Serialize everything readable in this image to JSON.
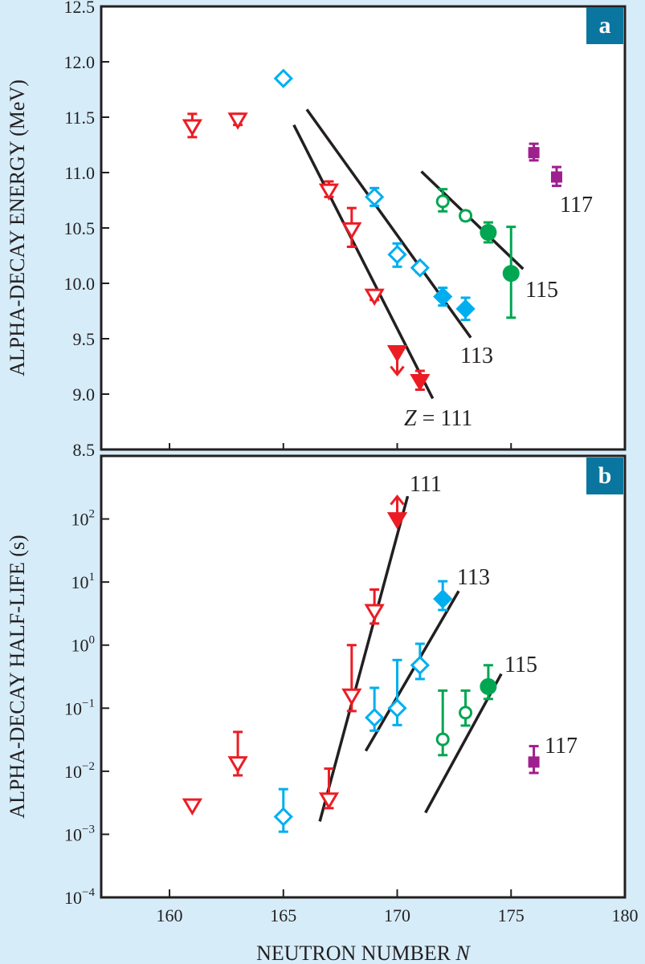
{
  "chart_data": [
    {
      "type": "scatter",
      "panel_label": "a",
      "ylabel": "ALPHA-DECAY ENERGY (MeV)",
      "xlim": [
        157,
        180
      ],
      "ylim": [
        8.5,
        12.5
      ],
      "yticks": [
        "8.5",
        "9.0",
        "9.5",
        "10.0",
        "10.5",
        "11.0",
        "11.5",
        "12.0",
        "12.5"
      ],
      "ytick_values": [
        8.5,
        9.0,
        9.5,
        10.0,
        10.5,
        11.0,
        11.5,
        12.0,
        12.5
      ],
      "series": [
        {
          "label": "Z = 111",
          "color": "#ec1c24",
          "marker": "triangle-down",
          "points": [
            {
              "N": 161,
              "v": 11.42,
              "lo": 11.32,
              "hi": 11.53,
              "filled": false
            },
            {
              "N": 163,
              "v": 11.48,
              "lo": 11.43,
              "hi": 11.53,
              "filled": false
            },
            {
              "N": 167,
              "v": 10.84,
              "lo": 10.78,
              "hi": 10.92,
              "filled": false
            },
            {
              "N": 168,
              "v": 10.49,
              "lo": 10.33,
              "hi": 10.68,
              "filled": false
            },
            {
              "N": 169,
              "v": 9.89,
              "lo": 9.85,
              "hi": 9.92,
              "filled": false
            },
            {
              "N": 170,
              "v": 9.38,
              "filled": true,
              "limit": "upper"
            },
            {
              "N": 171,
              "v": 9.12,
              "lo": 9.04,
              "hi": 9.21,
              "filled": true
            }
          ],
          "fit": [
            [
              165.46,
              11.43
            ],
            [
              171.56,
              8.96
            ]
          ]
        },
        {
          "label": "113",
          "color": "#00aeef",
          "marker": "diamond",
          "points": [
            {
              "N": 165,
              "v": 11.85,
              "filled": false
            },
            {
              "N": 169,
              "v": 10.78,
              "lo": 10.7,
              "hi": 10.86,
              "filled": false
            },
            {
              "N": 170,
              "v": 10.26,
              "lo": 10.15,
              "hi": 10.36,
              "filled": false
            },
            {
              "N": 171,
              "v": 10.14,
              "lo": 10.1,
              "hi": 10.18,
              "filled": false
            },
            {
              "N": 172,
              "v": 9.88,
              "lo": 9.8,
              "hi": 9.96,
              "filled": true
            },
            {
              "N": 173,
              "v": 9.77,
              "lo": 9.67,
              "hi": 9.87,
              "filled": true
            }
          ],
          "fit": [
            [
              166.03,
              11.57
            ],
            [
              173.23,
              9.51
            ]
          ]
        },
        {
          "label": "115",
          "color": "#00a651",
          "marker": "circle",
          "points": [
            {
              "N": 172,
              "v": 10.74,
              "lo": 10.65,
              "hi": 10.85,
              "filled": false
            },
            {
              "N": 173,
              "v": 10.61,
              "lo": 10.57,
              "hi": 10.65,
              "filled": false
            },
            {
              "N": 174,
              "v": 10.46,
              "lo": 10.37,
              "hi": 10.55,
              "filled": true
            },
            {
              "N": 175,
              "v": 10.09,
              "lo": 9.69,
              "hi": 10.51,
              "filled": true
            }
          ],
          "fit": [
            [
              171.06,
              11.01
            ],
            [
              175.53,
              10.13
            ]
          ]
        },
        {
          "label": "117",
          "color": "#9e1f8e",
          "marker": "square",
          "points": [
            {
              "N": 176,
              "v": 11.18,
              "lo": 11.11,
              "hi": 11.26,
              "filled": true
            },
            {
              "N": 177,
              "v": 10.96,
              "lo": 10.88,
              "hi": 11.05,
              "filled": true
            }
          ]
        }
      ]
    },
    {
      "type": "scatter",
      "panel_label": "b",
      "ylabel": "ALPHA-DECAY HALF-LIFE (s)",
      "xlabel": "NEUTRON NUMBER",
      "xlabel_var": "N",
      "xlim": [
        157,
        180
      ],
      "xticks": [
        "160",
        "165",
        "170",
        "175",
        "180"
      ],
      "xtick_values": [
        160,
        165,
        170,
        175,
        180
      ],
      "yscale": "log",
      "ylim": [
        0.0001,
        1000
      ],
      "ytick_exponents": [
        "-4",
        "-3",
        "-2",
        "-1",
        "0",
        "1",
        "2"
      ],
      "ytick_base": "10",
      "series": [
        {
          "label": "111",
          "color": "#ec1c24",
          "marker": "triangle-down",
          "points": [
            {
              "N": 161,
              "v": 0.0029,
              "filled": false
            },
            {
              "N": 163,
              "v": 0.0135,
              "lo": 0.0086,
              "hi": 0.042,
              "filled": false
            },
            {
              "N": 167,
              "v": 0.0036,
              "lo": 0.0026,
              "hi": 0.011,
              "filled": false
            },
            {
              "N": 168,
              "v": 0.16,
              "lo": 0.09,
              "hi": 1.0,
              "filled": false
            },
            {
              "N": 169,
              "v": 3.5,
              "lo": 2.2,
              "hi": 7.6,
              "filled": false
            },
            {
              "N": 170,
              "v": 100,
              "filled": true,
              "limit": "lower"
            }
          ],
          "fit": [
            [
              166.6,
              0.0016
            ],
            [
              170.46,
              230
            ]
          ]
        },
        {
          "label": "113",
          "color": "#00aeef",
          "marker": "diamond",
          "points": [
            {
              "N": 165,
              "v": 0.0019,
              "lo": 0.0011,
              "hi": 0.0052,
              "filled": false
            },
            {
              "N": 169,
              "v": 0.071,
              "lo": 0.044,
              "hi": 0.21,
              "filled": false
            },
            {
              "N": 170,
              "v": 0.1,
              "lo": 0.054,
              "hi": 0.58,
              "filled": false
            },
            {
              "N": 171,
              "v": 0.48,
              "lo": 0.29,
              "hi": 1.05,
              "filled": false
            },
            {
              "N": 172,
              "v": 5.4,
              "lo": 3.6,
              "hi": 10.3,
              "filled": true
            }
          ],
          "fit": [
            [
              168.62,
              0.021
            ],
            [
              172.7,
              7.2
            ]
          ]
        },
        {
          "label": "115",
          "color": "#00a651",
          "marker": "circle",
          "points": [
            {
              "N": 172,
              "v": 0.032,
              "lo": 0.018,
              "hi": 0.19,
              "filled": false
            },
            {
              "N": 173,
              "v": 0.085,
              "lo": 0.053,
              "hi": 0.19,
              "filled": false
            },
            {
              "N": 174,
              "v": 0.22,
              "lo": 0.14,
              "hi": 0.48,
              "filled": true
            }
          ],
          "fit": [
            [
              171.24,
              0.0022
            ],
            [
              174.57,
              0.35
            ]
          ]
        },
        {
          "label": "117",
          "color": "#9e1f8e",
          "marker": "square",
          "points": [
            {
              "N": 176,
              "v": 0.014,
              "lo": 0.0094,
              "hi": 0.025,
              "filled": true
            }
          ]
        }
      ]
    }
  ],
  "colors": {
    "background": "#d6ecf9",
    "badge": "#0a76a0",
    "axis": "#231f20"
  }
}
